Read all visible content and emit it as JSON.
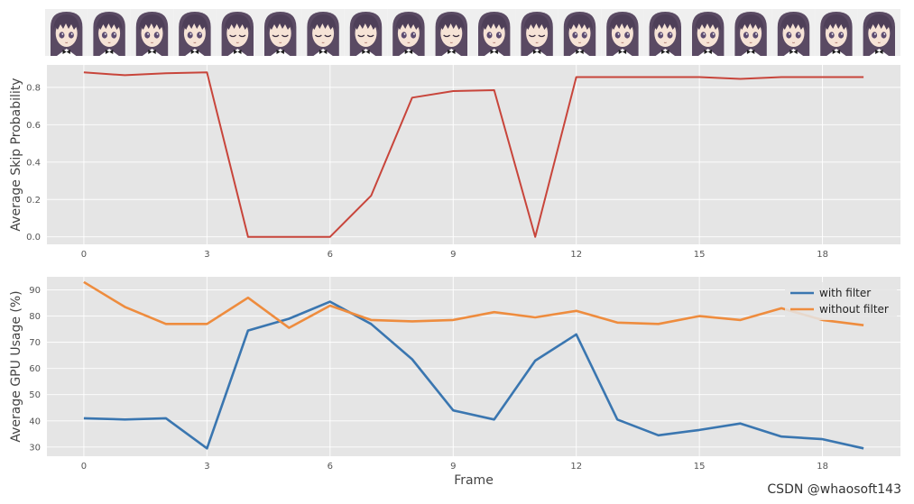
{
  "watermark": "CSDN @whaosoft143",
  "frame_strip": {
    "count": 20,
    "eyes_closed": [
      false,
      false,
      false,
      false,
      true,
      true,
      true,
      true,
      false,
      true,
      false,
      true,
      false,
      false,
      false,
      false,
      false,
      false,
      false,
      false
    ]
  },
  "chart_data": [
    {
      "type": "line",
      "ylabel": "Average Skip Probability",
      "xlabel": "",
      "x": [
        0,
        1,
        2,
        3,
        4,
        5,
        6,
        7,
        8,
        9,
        10,
        11,
        12,
        13,
        14,
        15,
        16,
        17,
        18,
        19
      ],
      "xticks": [
        0,
        3,
        6,
        9,
        12,
        15,
        18
      ],
      "yticks": [
        0.0,
        0.2,
        0.4,
        0.6,
        0.8
      ],
      "ytick_labels": [
        "0.0",
        "0.2",
        "0.4",
        "0.6",
        "0.8"
      ],
      "ylim": [
        -0.04,
        0.92
      ],
      "xlim": [
        -0.9,
        19.9
      ],
      "grid": true,
      "series": [
        {
          "name": "",
          "color": "#c8453b",
          "values": [
            0.88,
            0.865,
            0.875,
            0.88,
            0.0,
            0.0,
            0.0,
            0.22,
            0.745,
            0.78,
            0.785,
            0.0,
            0.855,
            0.855,
            0.855,
            0.855,
            0.845,
            0.855,
            0.855,
            0.855
          ]
        }
      ]
    },
    {
      "type": "line",
      "ylabel": "Average GPU Usage (%)",
      "xlabel": "Frame",
      "x": [
        0,
        1,
        2,
        3,
        4,
        5,
        6,
        7,
        8,
        9,
        10,
        11,
        12,
        13,
        14,
        15,
        16,
        17,
        18,
        19
      ],
      "xticks": [
        0,
        3,
        6,
        9,
        12,
        15,
        18
      ],
      "yticks": [
        30,
        40,
        50,
        60,
        70,
        80,
        90
      ],
      "ytick_labels": [
        "30",
        "40",
        "50",
        "60",
        "70",
        "80",
        "90"
      ],
      "ylim": [
        26.5,
        95
      ],
      "xlim": [
        -0.9,
        19.9
      ],
      "grid": true,
      "legend": "top-right",
      "series": [
        {
          "name": "with filter",
          "color": "#3a76b0",
          "values": [
            41,
            40.5,
            41,
            29.5,
            74.5,
            79,
            85.5,
            77,
            63.5,
            44,
            40.5,
            63,
            73,
            40.5,
            34.5,
            36.5,
            39,
            34,
            33,
            29.5
          ]
        },
        {
          "name": "without filter",
          "color": "#ee8c3e",
          "values": [
            93,
            83.5,
            77,
            77,
            87,
            75.5,
            84,
            78.5,
            78,
            78.5,
            81.5,
            79.5,
            82,
            77.5,
            77,
            80,
            78.5,
            83,
            78.5,
            76.5
          ]
        }
      ]
    }
  ]
}
